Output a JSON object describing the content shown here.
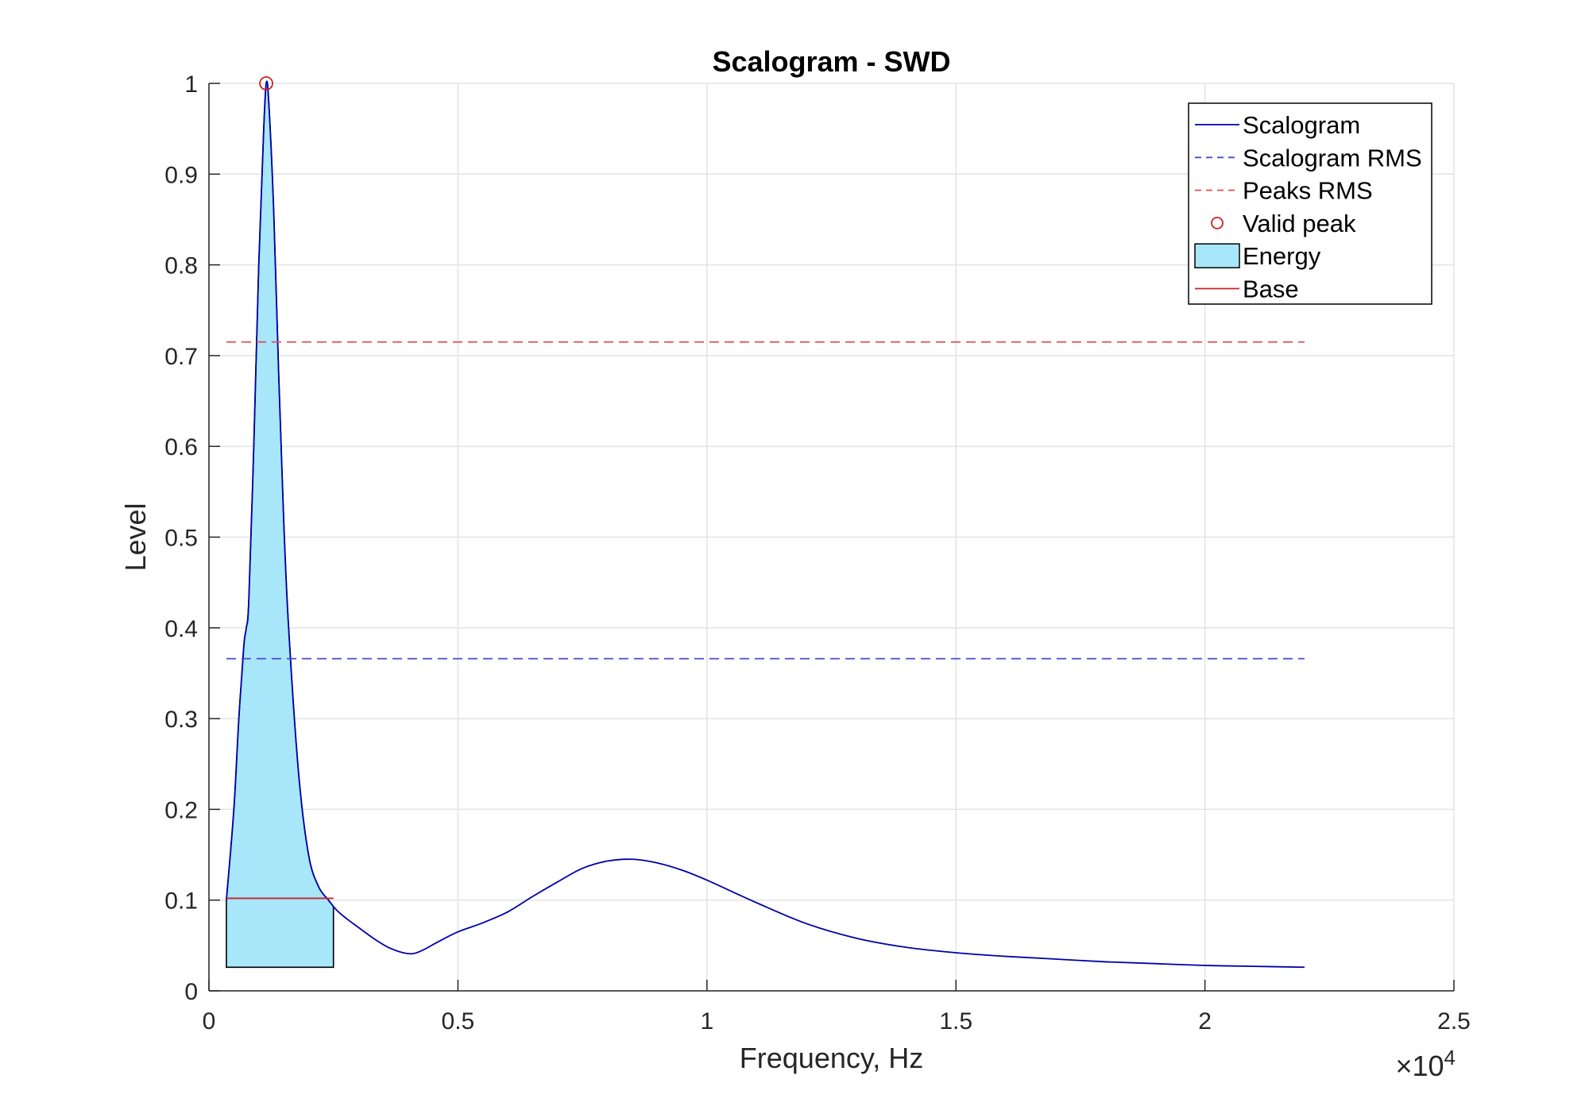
{
  "chart_data": {
    "type": "line",
    "title": "Scalogram - SWD",
    "xlabel": "Frequency, Hz",
    "ylabel": "Level",
    "x_exponent_label": "×10",
    "x_exponent_power": "4",
    "xlim": [
      0,
      25000
    ],
    "ylim": [
      0,
      1
    ],
    "x_ticks": [
      0,
      5000,
      10000,
      15000,
      20000,
      25000
    ],
    "x_tick_labels": [
      "0",
      "0.5",
      "1",
      "1.5",
      "2",
      "2.5"
    ],
    "y_ticks": [
      0,
      0.1,
      0.2,
      0.3,
      0.4,
      0.5,
      0.6,
      0.7,
      0.8,
      0.9,
      1
    ],
    "y_tick_labels": [
      "0",
      "0.1",
      "0.2",
      "0.3",
      "0.4",
      "0.5",
      "0.6",
      "0.7",
      "0.8",
      "0.9",
      "1"
    ],
    "grid": true,
    "legend_position": "top-right",
    "legend": [
      "Scalogram",
      "Scalogram RMS",
      "Peaks RMS",
      "Valid peak",
      "Energy",
      "Base"
    ],
    "colors": {
      "scalogram": "#0000aa",
      "scalogram_rms": "#4a4acc",
      "peaks_rms": "#e05050",
      "valid_peak": "#cc2222",
      "energy_fill": "#a8e6fa",
      "energy_edge": "#000000",
      "base": "#cc2222",
      "grid": "#e3e3e3",
      "axis": "#262626"
    },
    "series": [
      {
        "name": "Scalogram",
        "style": "solid",
        "x": [
          350,
          500,
          600,
          700,
          750,
          800,
          900,
          1000,
          1100,
          1150,
          1200,
          1300,
          1400,
          1500,
          1600,
          1800,
          2000,
          2200,
          2400,
          2500,
          2600,
          2800,
          3000,
          3300,
          3600,
          3900,
          4100,
          4300,
          4600,
          5000,
          5500,
          6000,
          6500,
          7000,
          7500,
          8000,
          8500,
          9000,
          9500,
          10000,
          11000,
          12000,
          13000,
          14000,
          15000,
          16000,
          17000,
          18000,
          19000,
          20000,
          21000,
          22000
        ],
        "y": [
          0.1,
          0.2,
          0.3,
          0.38,
          0.4,
          0.43,
          0.6,
          0.8,
          0.95,
          1.0,
          0.98,
          0.86,
          0.68,
          0.52,
          0.4,
          0.24,
          0.15,
          0.115,
          0.1,
          0.093,
          0.087,
          0.078,
          0.07,
          0.058,
          0.048,
          0.042,
          0.041,
          0.045,
          0.054,
          0.065,
          0.075,
          0.087,
          0.104,
          0.12,
          0.135,
          0.143,
          0.145,
          0.141,
          0.133,
          0.122,
          0.097,
          0.074,
          0.058,
          0.048,
          0.042,
          0.038,
          0.035,
          0.032,
          0.03,
          0.028,
          0.027,
          0.026
        ]
      },
      {
        "name": "Scalogram RMS",
        "style": "dashed",
        "x": [
          350,
          22000
        ],
        "y": [
          0.366,
          0.366
        ]
      },
      {
        "name": "Peaks RMS",
        "style": "dashed",
        "x": [
          350,
          22000
        ],
        "y": [
          0.715,
          0.715
        ]
      },
      {
        "name": "Valid peak",
        "style": "marker",
        "x": [
          1150
        ],
        "y": [
          1.0
        ]
      },
      {
        "name": "Energy",
        "style": "area",
        "x_range": [
          350,
          2500
        ],
        "baseline": 0.026
      },
      {
        "name": "Base",
        "style": "solid",
        "x": [
          350,
          2500
        ],
        "y": [
          0.102,
          0.102
        ]
      }
    ]
  }
}
